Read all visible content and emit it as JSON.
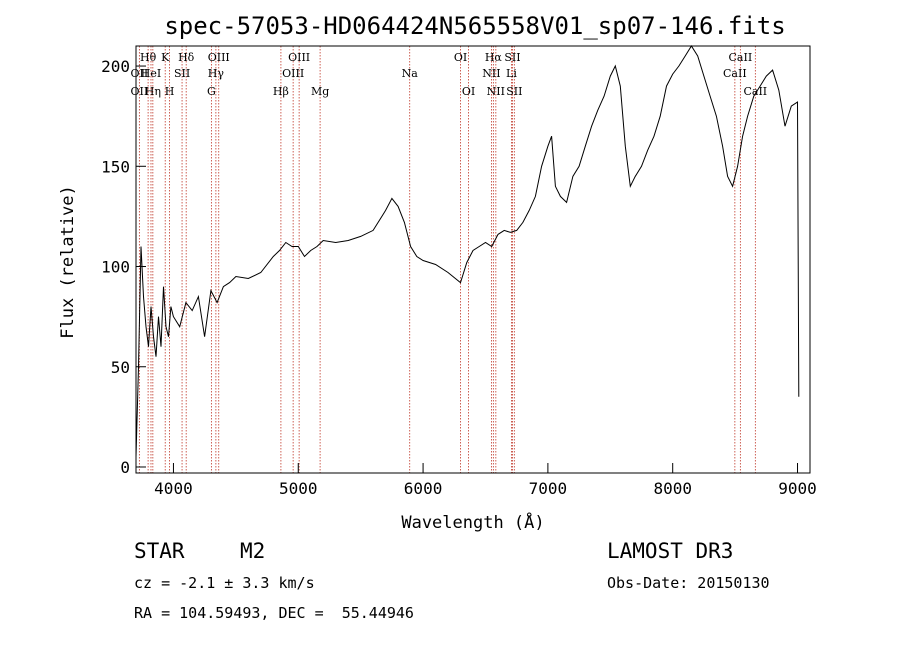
{
  "chart_data": {
    "type": "line",
    "title": "spec-57053-HD064424N565558V01_sp07-146.fits",
    "xlabel": "Wavelength (Å)",
    "ylabel": "Flux (relative)",
    "xlim": [
      3700,
      9100
    ],
    "ylim": [
      -3,
      210
    ],
    "x_ticks": [
      4000,
      5000,
      6000,
      7000,
      8000,
      9000
    ],
    "y_ticks": [
      0,
      50,
      100,
      150,
      200
    ],
    "series": [
      {
        "name": "flux",
        "x": [
          3700,
          3720,
          3740,
          3760,
          3780,
          3800,
          3820,
          3840,
          3860,
          3880,
          3900,
          3920,
          3940,
          3960,
          3980,
          4000,
          4050,
          4100,
          4150,
          4200,
          4250,
          4300,
          4350,
          4400,
          4450,
          4500,
          4600,
          4700,
          4800,
          4850,
          4900,
          4950,
          5000,
          5050,
          5100,
          5150,
          5200,
          5300,
          5400,
          5500,
          5600,
          5700,
          5750,
          5800,
          5850,
          5900,
          5950,
          6000,
          6100,
          6200,
          6300,
          6350,
          6400,
          6450,
          6500,
          6550,
          6600,
          6650,
          6700,
          6750,
          6800,
          6850,
          6900,
          6950,
          7000,
          7030,
          7060,
          7100,
          7150,
          7200,
          7250,
          7300,
          7350,
          7400,
          7450,
          7500,
          7540,
          7580,
          7620,
          7660,
          7700,
          7750,
          7800,
          7850,
          7900,
          7950,
          8000,
          8050,
          8100,
          8150,
          8200,
          8250,
          8300,
          8350,
          8400,
          8440,
          8480,
          8520,
          8560,
          8600,
          8650,
          8700,
          8750,
          8800,
          8850,
          8900,
          8950,
          9000,
          9010
        ],
        "y": [
          5,
          50,
          110,
          85,
          70,
          60,
          80,
          65,
          55,
          75,
          60,
          90,
          70,
          65,
          80,
          75,
          70,
          82,
          78,
          85,
          65,
          88,
          82,
          90,
          92,
          95,
          94,
          97,
          105,
          108,
          112,
          110,
          110,
          105,
          108,
          110,
          113,
          112,
          113,
          115,
          118,
          128,
          134,
          130,
          122,
          110,
          105,
          103,
          101,
          97,
          92,
          102,
          108,
          110,
          112,
          110,
          116,
          118,
          117,
          118,
          122,
          128,
          135,
          150,
          160,
          165,
          140,
          135,
          132,
          145,
          150,
          160,
          170,
          178,
          185,
          195,
          200,
          190,
          160,
          140,
          145,
          150,
          158,
          165,
          175,
          190,
          196,
          200,
          205,
          210,
          205,
          195,
          185,
          175,
          160,
          145,
          140,
          150,
          165,
          175,
          185,
          190,
          195,
          198,
          188,
          170,
          180,
          182,
          35
        ]
      }
    ],
    "spectral_lines": [
      {
        "name": "OII",
        "x": 3727,
        "row": 2
      },
      {
        "name": "Hθ",
        "x": 3797,
        "row": 1
      },
      {
        "name": "OII",
        "x": 3727,
        "row": 3
      },
      {
        "name": "HeI",
        "x": 3820,
        "row": 2
      },
      {
        "name": "Hη",
        "x": 3835,
        "row": 3
      },
      {
        "name": "K",
        "x": 3934,
        "row": 1
      },
      {
        "name": "SII",
        "x": 4069,
        "row": 2
      },
      {
        "name": "H",
        "x": 3969,
        "row": 3
      },
      {
        "name": "Hδ",
        "x": 4102,
        "row": 1
      },
      {
        "name": "OIII",
        "x": 4363,
        "row": 1
      },
      {
        "name": "Hγ",
        "x": 4340,
        "row": 2
      },
      {
        "name": "G",
        "x": 4304,
        "row": 3
      },
      {
        "name": "OIII",
        "x": 5007,
        "row": 1
      },
      {
        "name": "OIII",
        "x": 4959,
        "row": 2
      },
      {
        "name": "Hβ",
        "x": 4861,
        "row": 3
      },
      {
        "name": "Mg",
        "x": 5175,
        "row": 3
      },
      {
        "name": "Na",
        "x": 5893,
        "row": 2
      },
      {
        "name": "OI",
        "x": 6300,
        "row": 1
      },
      {
        "name": "OI",
        "x": 6364,
        "row": 3
      },
      {
        "name": "Hα",
        "x": 6563,
        "row": 1
      },
      {
        "name": "SII",
        "x": 6716,
        "row": 1
      },
      {
        "name": "NII",
        "x": 6548,
        "row": 2
      },
      {
        "name": "Li",
        "x": 6708,
        "row": 2
      },
      {
        "name": "NII",
        "x": 6583,
        "row": 3
      },
      {
        "name": "SII",
        "x": 6731,
        "row": 3
      },
      {
        "name": "CaII",
        "x": 8542,
        "row": 1
      },
      {
        "name": "CaII",
        "x": 8498,
        "row": 2
      },
      {
        "name": "CaII",
        "x": 8662,
        "row": 3
      }
    ]
  },
  "info": {
    "object_class": "STAR",
    "subclass": "M2",
    "survey": "LAMOST DR3",
    "cz": "cz = -2.1 ± 3.3 km/s",
    "obs_date": "Obs-Date: 20150130",
    "coords": "RA = 104.59493, DEC =  55.44946"
  },
  "colors": {
    "line_marker": "#c0392b",
    "spectrum": "#000000",
    "background": "#ffffff"
  }
}
